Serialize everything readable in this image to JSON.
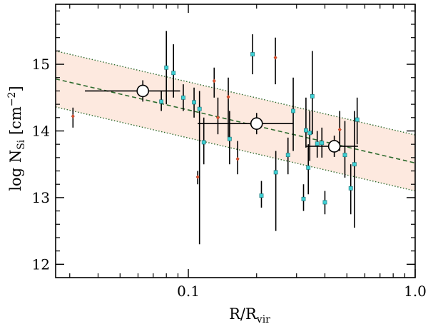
{
  "chart_data": {
    "type": "scatter",
    "xscale": "log",
    "xlim": [
      0.026,
      1.0
    ],
    "ylim": [
      11.8,
      15.9
    ],
    "xticks": [
      {
        "value": 0.1,
        "label": "0.1"
      },
      {
        "value": 1.0,
        "label": "1.0"
      }
    ],
    "yticks": [
      {
        "value": 12,
        "label": "12"
      },
      {
        "value": 13,
        "label": "13"
      },
      {
        "value": 14,
        "label": "14"
      },
      {
        "value": 15,
        "label": "15"
      }
    ],
    "xlabel": {
      "base": "R/R",
      "sub": "vir"
    },
    "ylabel": {
      "pre": "log N",
      "sub": "Si",
      "post": " [cm",
      "sup": "−2",
      "end": "]"
    },
    "grid": false,
    "legend": "none",
    "fit": {
      "points": [
        [
          0.026,
          14.78
        ],
        [
          1.0,
          13.52
        ]
      ],
      "band_halfwidth": 0.42,
      "line_color": "#2e6b2e",
      "band_color": "#fde9df"
    },
    "binned": [
      {
        "x": 0.063,
        "y": 14.6,
        "xlo": 0.035,
        "xhi": 0.092,
        "ylo": 14.44,
        "yhi": 14.76
      },
      {
        "x": 0.2,
        "y": 14.11,
        "xlo": 0.11,
        "xhi": 0.29,
        "ylo": 13.95,
        "yhi": 14.27
      },
      {
        "x": 0.44,
        "y": 13.77,
        "xlo": 0.33,
        "xhi": 0.56,
        "ylo": 13.61,
        "yhi": 13.93
      }
    ],
    "series": [
      {
        "marker": "square",
        "color": "#3fd0d4",
        "points": [
          {
            "x": 0.08,
            "y": 14.95,
            "ylo": 14.4,
            "yhi": 15.5
          },
          {
            "x": 0.086,
            "y": 14.87,
            "ylo": 14.5,
            "yhi": 15.3
          },
          {
            "x": 0.076,
            "y": 14.44,
            "ylo": 14.3,
            "yhi": 14.6
          },
          {
            "x": 0.095,
            "y": 14.5,
            "ylo": 14.3,
            "yhi": 14.7
          },
          {
            "x": 0.106,
            "y": 14.43,
            "ylo": 14.2,
            "yhi": 14.65
          },
          {
            "x": 0.112,
            "y": 14.33,
            "ylo": 12.3,
            "yhi": 14.6
          },
          {
            "x": 0.117,
            "y": 13.83,
            "ylo": 13.5,
            "yhi": 14.2
          },
          {
            "x": 0.152,
            "y": 13.88,
            "ylo": 13.5,
            "yhi": 14.3
          },
          {
            "x": 0.192,
            "y": 15.15,
            "ylo": 14.85,
            "yhi": 15.45
          },
          {
            "x": 0.21,
            "y": 13.03,
            "ylo": 12.85,
            "yhi": 13.25
          },
          {
            "x": 0.243,
            "y": 13.38,
            "ylo": 12.5,
            "yhi": 13.7
          },
          {
            "x": 0.275,
            "y": 13.64,
            "ylo": 13.35,
            "yhi": 13.9
          },
          {
            "x": 0.29,
            "y": 14.3,
            "ylo": 13.7,
            "yhi": 14.8
          },
          {
            "x": 0.322,
            "y": 12.98,
            "ylo": 12.8,
            "yhi": 13.2
          },
          {
            "x": 0.33,
            "y": 14.01,
            "ylo": 13.75,
            "yhi": 14.5
          },
          {
            "x": 0.338,
            "y": 13.45,
            "ylo": 13.05,
            "yhi": 13.8
          },
          {
            "x": 0.343,
            "y": 13.97,
            "ylo": 13.55,
            "yhi": 14.3
          },
          {
            "x": 0.352,
            "y": 14.52,
            "ylo": 13.95,
            "yhi": 15.2
          },
          {
            "x": 0.37,
            "y": 13.81,
            "ylo": 13.6,
            "yhi": 14.0
          },
          {
            "x": 0.388,
            "y": 13.82,
            "ylo": 13.6,
            "yhi": 14.05
          },
          {
            "x": 0.4,
            "y": 12.93,
            "ylo": 12.75,
            "yhi": 13.1
          },
          {
            "x": 0.49,
            "y": 13.64,
            "ylo": 13.3,
            "yhi": 14.15
          },
          {
            "x": 0.52,
            "y": 13.14,
            "ylo": 12.75,
            "yhi": 13.5
          },
          {
            "x": 0.54,
            "y": 13.5,
            "ylo": 12.55,
            "yhi": 14.3
          },
          {
            "x": 0.555,
            "y": 14.17,
            "ylo": 13.8,
            "yhi": 14.5
          }
        ]
      },
      {
        "marker": "diamond",
        "color": "#e0522e",
        "points": [
          {
            "x": 0.031,
            "y": 14.22,
            "ylo": 14.05,
            "yhi": 14.35
          },
          {
            "x": 0.11,
            "y": 13.31,
            "ylo": 13.2,
            "yhi": 13.4
          },
          {
            "x": 0.13,
            "y": 14.75,
            "ylo": 14.5,
            "yhi": 14.95
          },
          {
            "x": 0.135,
            "y": 14.2,
            "ylo": 13.95,
            "yhi": 14.5
          },
          {
            "x": 0.15,
            "y": 14.51,
            "ylo": 13.85,
            "yhi": 14.8
          },
          {
            "x": 0.165,
            "y": 13.58,
            "ylo": 13.35,
            "yhi": 13.85
          },
          {
            "x": 0.242,
            "y": 15.1,
            "ylo": 14.7,
            "yhi": 15.4
          },
          {
            "x": 0.465,
            "y": 14.02,
            "ylo": 13.7,
            "yhi": 14.3
          }
        ]
      }
    ]
  }
}
